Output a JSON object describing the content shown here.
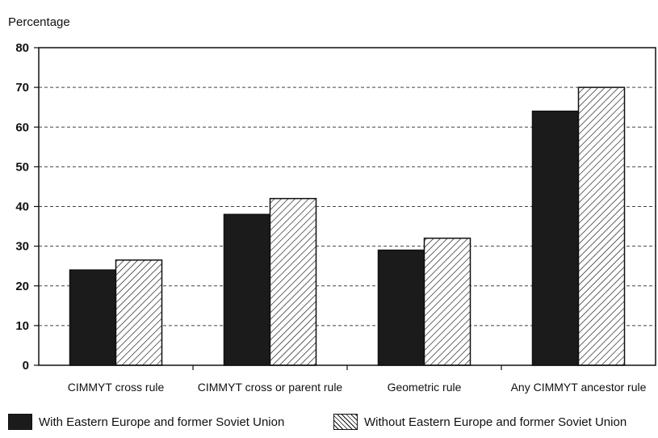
{
  "chart_data": {
    "type": "bar",
    "ylabel": "Percentage",
    "xlabel": "",
    "ylim": [
      0,
      80
    ],
    "yticks": [
      "0",
      "10",
      "20",
      "30",
      "40",
      "50",
      "60",
      "70",
      "80"
    ],
    "grid": true,
    "legend_position": "bottom",
    "categories": [
      "CIMMYT cross rule",
      "CIMMYT cross or parent rule",
      "Geometric rule",
      "Any CIMMYT ancestor rule"
    ],
    "series": [
      {
        "name": "With Eastern Europe and former Soviet Union",
        "fill": "solid",
        "color": "#1b1b1b",
        "values": [
          24,
          38,
          29,
          64
        ]
      },
      {
        "name": "Without Eastern Europe and former Soviet Union",
        "fill": "hatched",
        "color": "#ffffff",
        "values": [
          26.5,
          42,
          32,
          70
        ]
      }
    ]
  }
}
